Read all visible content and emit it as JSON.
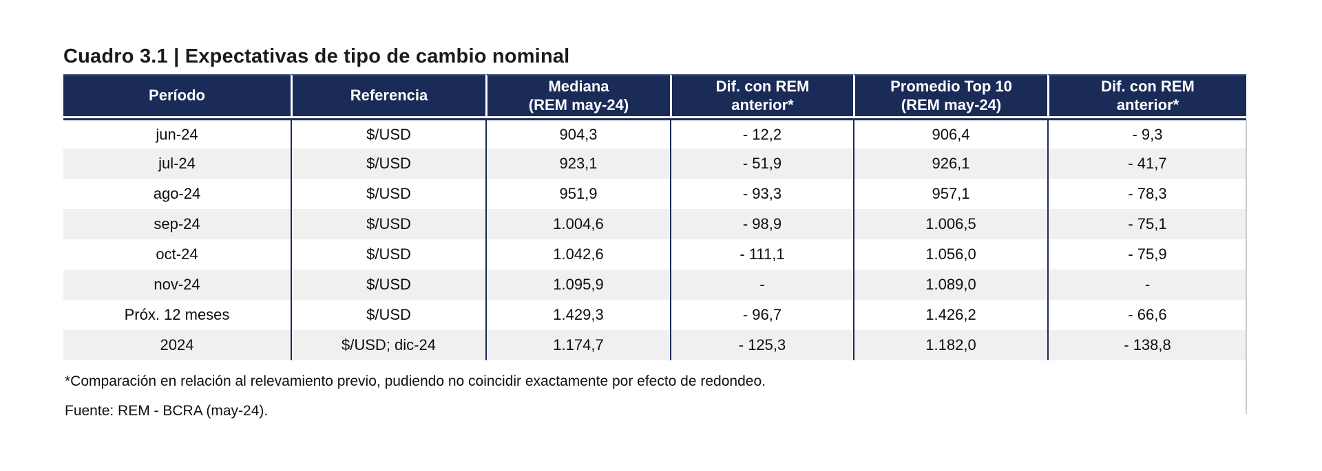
{
  "title": "Cuadro 3.1 | Expectativas de tipo de cambio nominal",
  "colors": {
    "header_bg": "#1b2b58",
    "header_text": "#ffffff",
    "row_stripe": "#f0f0f0",
    "body_border": "#1b2b58"
  },
  "chart_data": {
    "type": "table",
    "title": "Cuadro 3.1 | Expectativas de tipo de cambio nominal",
    "columns": [
      {
        "lines": [
          "Período"
        ]
      },
      {
        "lines": [
          "Referencia"
        ]
      },
      {
        "lines": [
          "Mediana",
          "(REM may-24)"
        ]
      },
      {
        "lines": [
          "Dif. con REM",
          "anterior*"
        ]
      },
      {
        "lines": [
          "Promedio Top 10",
          "(REM may-24)"
        ]
      },
      {
        "lines": [
          "Dif. con REM",
          "anterior*"
        ]
      }
    ],
    "rows": [
      [
        "jun-24",
        "$/USD",
        "904,3",
        "- 12,2",
        "906,4",
        "- 9,3"
      ],
      [
        "jul-24",
        "$/USD",
        "923,1",
        "- 51,9",
        "926,1",
        "- 41,7"
      ],
      [
        "ago-24",
        "$/USD",
        "951,9",
        "- 93,3",
        "957,1",
        "- 78,3"
      ],
      [
        "sep-24",
        "$/USD",
        "1.004,6",
        "- 98,9",
        "1.006,5",
        "- 75,1"
      ],
      [
        "oct-24",
        "$/USD",
        "1.042,6",
        "- 111,1",
        "1.056,0",
        "- 75,9"
      ],
      [
        "nov-24",
        "$/USD",
        "1.095,9",
        "-",
        "1.089,0",
        "-"
      ],
      [
        "Próx. 12 meses",
        "$/USD",
        "1.429,3",
        "- 96,7",
        "1.426,2",
        "- 66,6"
      ],
      [
        "2024",
        "$/USD; dic-24",
        "1.174,7",
        "- 125,3",
        "1.182,0",
        "- 138,8"
      ]
    ]
  },
  "footnote": "*Comparación en relación al relevamiento previo, pudiendo no coincidir exactamente por efecto de redondeo.",
  "source": "Fuente: REM - BCRA (may-24)."
}
